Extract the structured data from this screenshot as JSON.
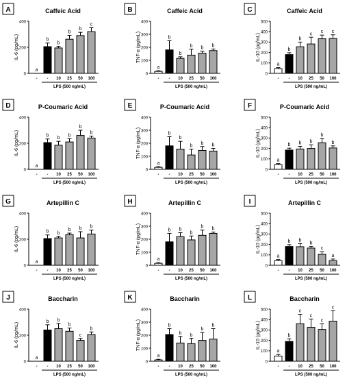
{
  "figure": {
    "x_axis_label": "LPS (500 ng/mL)",
    "x_tick_labels": [
      "-",
      "-",
      "10",
      "25",
      "50",
      "100"
    ]
  },
  "colors": {
    "control": "#ffffff",
    "lps": "#000000",
    "treated": "#a6a6a6",
    "axis": "#000000"
  },
  "chart_data": [
    {
      "panel": "A",
      "type": "bar",
      "title": "Caffeic Acid",
      "ylabel": "IL-6 (pg/mL)",
      "ylim": [
        0,
        400
      ],
      "yticks": [
        0,
        200,
        400
      ],
      "categories": [
        "-",
        "-",
        "10",
        "25",
        "50",
        "100"
      ],
      "values": [
        0,
        205,
        195,
        262,
        290,
        320
      ],
      "errors": [
        0,
        28,
        12,
        30,
        25,
        30
      ],
      "significance": [
        "a",
        "b",
        "b",
        "b",
        "b",
        "c"
      ],
      "xlabel": "LPS (500 ng/mL)"
    },
    {
      "panel": "B",
      "type": "bar",
      "title": "Caffeic Acid",
      "ylabel": "TNF-α (pg/mL)",
      "ylim": [
        0,
        400
      ],
      "yticks": [
        0,
        100,
        200,
        300,
        400
      ],
      "categories": [
        "-",
        "-",
        "10",
        "25",
        "50",
        "100"
      ],
      "values": [
        15,
        180,
        115,
        140,
        155,
        175
      ],
      "errors": [
        5,
        70,
        12,
        45,
        15,
        12
      ],
      "significance": [
        "a",
        "b",
        "b",
        "b",
        "b",
        "b"
      ],
      "xlabel": "LPS (500 ng/mL)"
    },
    {
      "panel": "C",
      "type": "bar",
      "title": "Caffeic Acid",
      "ylabel": "IL-10 (pg/mL)",
      "ylim": [
        0,
        500
      ],
      "yticks": [
        0,
        100,
        200,
        300,
        400,
        500
      ],
      "categories": [
        "-",
        "-",
        "10",
        "25",
        "50",
        "100"
      ],
      "values": [
        45,
        180,
        255,
        282,
        332,
        335
      ],
      "errors": [
        10,
        18,
        45,
        65,
        35,
        35
      ],
      "significance": [
        "a",
        "b",
        "b",
        "c",
        "c",
        "c"
      ],
      "xlabel": "LPS (500 ng/mL)"
    },
    {
      "panel": "D",
      "type": "bar",
      "title": "P-Coumaric Acid",
      "ylabel": "IL-6 (pg/mL)",
      "ylim": [
        0,
        400
      ],
      "yticks": [
        0,
        200,
        400
      ],
      "categories": [
        "-",
        "-",
        "10",
        "25",
        "50",
        "100"
      ],
      "values": [
        0,
        205,
        185,
        210,
        260,
        240
      ],
      "errors": [
        0,
        28,
        30,
        25,
        40,
        15
      ],
      "significance": [
        "a",
        "b",
        "b",
        "b",
        "b",
        "b"
      ],
      "xlabel": "LPS (500 ng/mL)"
    },
    {
      "panel": "E",
      "type": "bar",
      "title": "P-Coumaric Acid",
      "ylabel": "TNF-α (pg/mL)",
      "ylim": [
        0,
        400
      ],
      "yticks": [
        0,
        100,
        200,
        300,
        400
      ],
      "categories": [
        "-",
        "-",
        "10",
        "25",
        "50",
        "100"
      ],
      "values": [
        15,
        180,
        155,
        110,
        145,
        140
      ],
      "errors": [
        5,
        70,
        60,
        45,
        30,
        20
      ],
      "significance": [
        "a",
        "b",
        "b",
        "b",
        "b",
        "b"
      ],
      "xlabel": "LPS (500 ng/mL)"
    },
    {
      "panel": "F",
      "type": "bar",
      "title": "P-Coumaric Acid",
      "ylabel": "IL-10 (pg/mL)",
      "ylim": [
        0,
        500
      ],
      "yticks": [
        0,
        100,
        200,
        300,
        400,
        500
      ],
      "categories": [
        "-",
        "-",
        "10",
        "25",
        "50",
        "100"
      ],
      "values": [
        45,
        185,
        195,
        200,
        255,
        205
      ],
      "errors": [
        10,
        18,
        25,
        35,
        40,
        20
      ],
      "significance": [
        "a",
        "b",
        "b",
        "b",
        "b",
        "b"
      ],
      "xlabel": "LPS (500 ng/mL)"
    },
    {
      "panel": "G",
      "type": "bar",
      "title": "Artepillin C",
      "ylabel": "IL-6 (pg/mL)",
      "ylim": [
        0,
        400
      ],
      "yticks": [
        0,
        200,
        400
      ],
      "categories": [
        "-",
        "-",
        "10",
        "25",
        "50",
        "100"
      ],
      "values": [
        0,
        205,
        210,
        235,
        210,
        240
      ],
      "errors": [
        0,
        28,
        12,
        12,
        48,
        30
      ],
      "significance": [
        "a",
        "b",
        "b",
        "b",
        "b",
        "b"
      ],
      "xlabel": "LPS (500 ng/mL)"
    },
    {
      "panel": "H",
      "type": "bar",
      "title": "Artepillin C",
      "ylabel": "TNF-α (pg/mL)",
      "ylim": [
        0,
        400
      ],
      "yticks": [
        0,
        100,
        200,
        300,
        400
      ],
      "categories": [
        "-",
        "-",
        "10",
        "25",
        "50",
        "100"
      ],
      "values": [
        15,
        180,
        220,
        195,
        230,
        245
      ],
      "errors": [
        5,
        65,
        30,
        30,
        40,
        10
      ],
      "significance": [
        "a",
        "b",
        "b",
        "b",
        "b",
        "b"
      ],
      "xlabel": "LPS (500 ng/mL)"
    },
    {
      "panel": "I",
      "type": "bar",
      "title": "Artepillin C",
      "ylabel": "IL-10 (pg/mL)",
      "ylim": [
        0,
        500
      ],
      "yticks": [
        0,
        100,
        200,
        300,
        400,
        500
      ],
      "categories": [
        "-",
        "-",
        "10",
        "25",
        "50",
        "100"
      ],
      "values": [
        45,
        180,
        178,
        165,
        105,
        45
      ],
      "errors": [
        10,
        18,
        30,
        15,
        25,
        15
      ],
      "significance": [
        "a",
        "b",
        "b",
        "b",
        "c",
        "a"
      ],
      "xlabel": "LPS (500 ng/mL)"
    },
    {
      "panel": "J",
      "type": "bar",
      "title": "Baccharin",
      "ylabel": "IL-6 (pg/mL)",
      "ylim": [
        0,
        400
      ],
      "yticks": [
        0,
        200,
        400
      ],
      "categories": [
        "-",
        "-",
        "10",
        "25",
        "50",
        "100"
      ],
      "values": [
        0,
        240,
        250,
        230,
        160,
        205
      ],
      "errors": [
        0,
        40,
        40,
        25,
        15,
        20
      ],
      "significance": [
        "a",
        "b",
        "b",
        "b",
        "c",
        "b"
      ],
      "xlabel": "LPS (500 ng/mL)"
    },
    {
      "panel": "K",
      "type": "bar",
      "title": "Baccharin",
      "ylabel": "TNF-α (pg/mL)",
      "ylim": [
        0,
        400
      ],
      "yticks": [
        0,
        100,
        200,
        300,
        400
      ],
      "categories": [
        "-",
        "-",
        "10",
        "25",
        "50",
        "100"
      ],
      "values": [
        10,
        205,
        140,
        135,
        160,
        170
      ],
      "errors": [
        5,
        45,
        50,
        40,
        60,
        80
      ],
      "significance": [
        "a",
        "b",
        "b",
        "b",
        "b",
        "b"
      ],
      "xlabel": "LPS (500 ng/mL)"
    },
    {
      "panel": "L",
      "type": "bar",
      "title": "Baccharin",
      "ylabel": "IL-10 (pg/mL)",
      "ylim": [
        0,
        500
      ],
      "yticks": [
        0,
        100,
        200,
        300,
        400,
        500
      ],
      "categories": [
        "-",
        "-",
        "10",
        "25",
        "50",
        "100"
      ],
      "values": [
        50,
        190,
        360,
        325,
        305,
        385
      ],
      "errors": [
        15,
        25,
        90,
        80,
        55,
        100
      ],
      "significance": [
        "a",
        "b",
        "c",
        "c",
        "c",
        "c"
      ],
      "xlabel": "LPS (500 ng/mL)"
    }
  ]
}
